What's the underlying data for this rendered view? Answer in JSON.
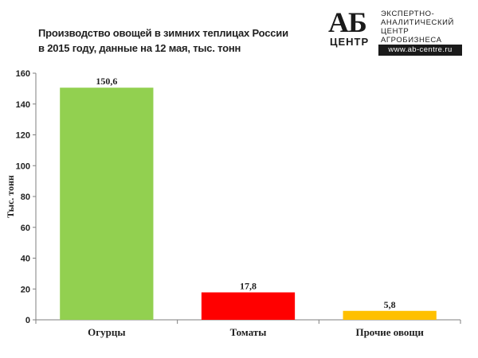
{
  "title_lines": [
    "Производство овощей в зимних теплицах России",
    "в 2015 году, данные на 12 мая, тыс. тонн"
  ],
  "logo": {
    "big": "АБ",
    "small": "ЦЕНТР",
    "lines": [
      "ЭКСПЕРТНО-",
      "АНАЛИТИЧЕСКИЙ",
      "ЦЕНТР",
      "АГРОБИЗНЕСА"
    ],
    "url": "www.ab-centre.ru"
  },
  "chart_data": {
    "type": "bar",
    "categories": [
      "Огурцы",
      "Томаты",
      "Прочие овощи"
    ],
    "values": [
      150.6,
      17.8,
      5.8
    ],
    "value_labels": [
      "150,6",
      "17,8",
      "5,8"
    ],
    "colors": [
      "#92d050",
      "#ff0000",
      "#ffc000"
    ],
    "ylabel": "Тыс. тонн",
    "ylim": [
      0,
      160
    ],
    "yticks": [
      0,
      20,
      40,
      60,
      80,
      100,
      120,
      140,
      160
    ],
    "grid": false,
    "legend": "none"
  }
}
